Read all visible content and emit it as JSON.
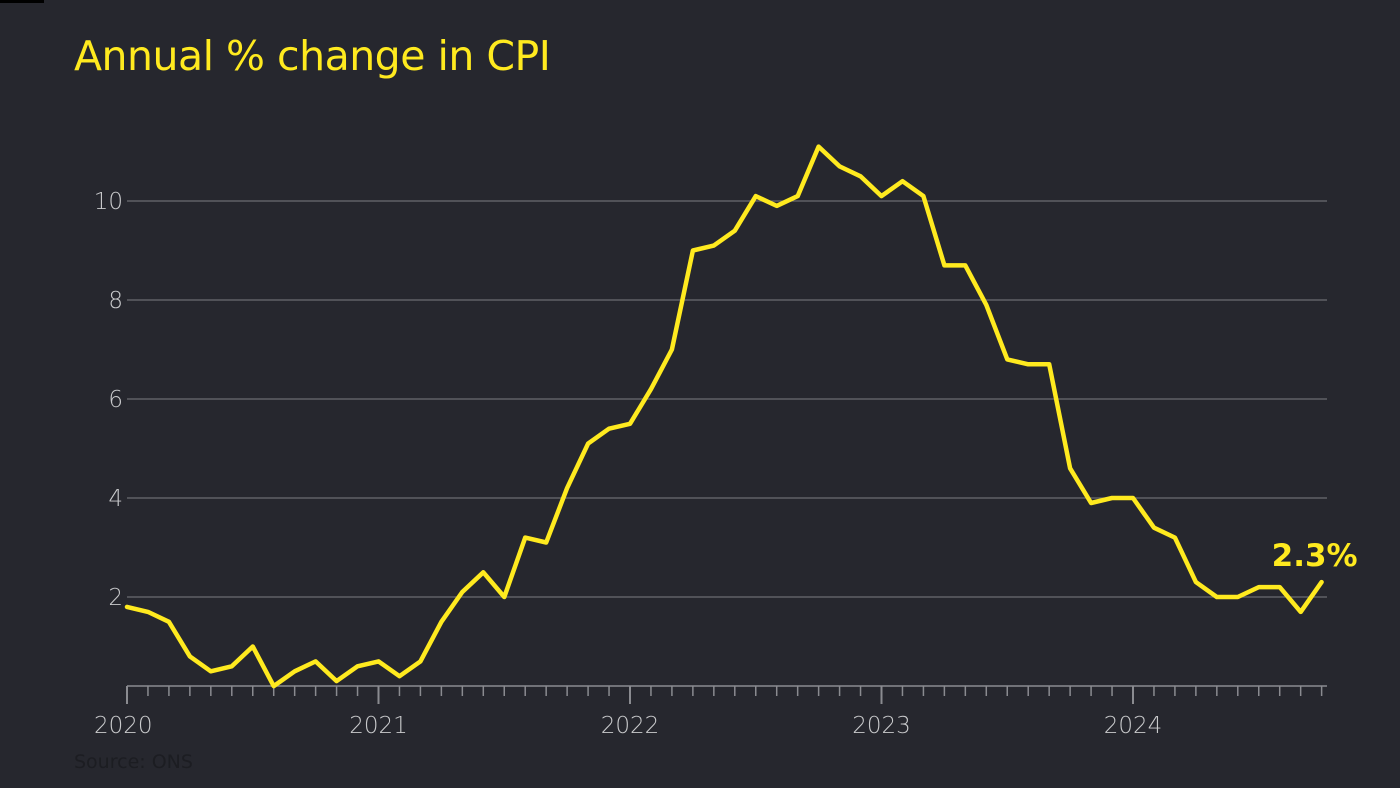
{
  "colors": {
    "background": "#26272e",
    "line": "#ffea1f",
    "title": "#ffea1f",
    "grid": "#6b6c72",
    "axis": "#8a8b90",
    "tick_label": "#c9cacc",
    "source": "#1c1d22"
  },
  "chart_data": {
    "type": "line",
    "title": "Annual % change in CPI",
    "xlabel": "",
    "ylabel": "",
    "source": "Source: ONS",
    "ylim": [
      0,
      11.5
    ],
    "y_ticks": [
      2,
      4,
      6,
      8,
      10
    ],
    "x_tick_labels": [
      "2020",
      "2021",
      "2022",
      "2023",
      "2024"
    ],
    "x_tick_dates": [
      "2020-01",
      "2021-01",
      "2022-01",
      "2023-01",
      "2024-01"
    ],
    "grid": true,
    "legend": "none",
    "end_label": "2.3%",
    "series": [
      {
        "x": [
          "2020-01",
          "2020-02",
          "2020-03",
          "2020-04",
          "2020-05",
          "2020-06",
          "2020-07",
          "2020-08",
          "2020-09",
          "2020-10",
          "2020-11",
          "2020-12",
          "2021-01",
          "2021-02",
          "2021-03",
          "2021-04",
          "2021-05",
          "2021-06",
          "2021-07",
          "2021-08",
          "2021-09",
          "2021-10",
          "2021-11",
          "2021-12",
          "2022-01",
          "2022-02",
          "2022-03",
          "2022-04",
          "2022-05",
          "2022-06",
          "2022-07",
          "2022-08",
          "2022-09",
          "2022-10",
          "2022-11",
          "2022-12",
          "2023-01",
          "2023-02",
          "2023-03",
          "2023-04",
          "2023-05",
          "2023-06",
          "2023-07",
          "2023-08",
          "2023-09",
          "2023-10",
          "2023-11",
          "2023-12",
          "2024-01",
          "2024-02",
          "2024-03",
          "2024-04",
          "2024-05",
          "2024-06",
          "2024-07",
          "2024-08",
          "2024-09",
          "2024-10"
        ],
        "values": [
          1.8,
          1.7,
          1.5,
          0.8,
          0.5,
          0.6,
          1.0,
          0.2,
          0.5,
          0.7,
          0.3,
          0.6,
          0.7,
          0.4,
          0.7,
          1.5,
          2.1,
          2.5,
          2.0,
          3.2,
          3.1,
          4.2,
          5.1,
          5.4,
          5.5,
          6.2,
          7.0,
          9.0,
          9.1,
          9.4,
          10.1,
          9.9,
          10.1,
          11.1,
          10.7,
          10.5,
          10.1,
          10.4,
          10.1,
          8.7,
          8.7,
          7.9,
          6.8,
          6.7,
          6.7,
          4.6,
          3.9,
          4.0,
          4.0,
          3.4,
          3.2,
          2.3,
          2.0,
          2.0,
          2.2,
          2.2,
          1.7,
          2.3
        ]
      }
    ]
  }
}
